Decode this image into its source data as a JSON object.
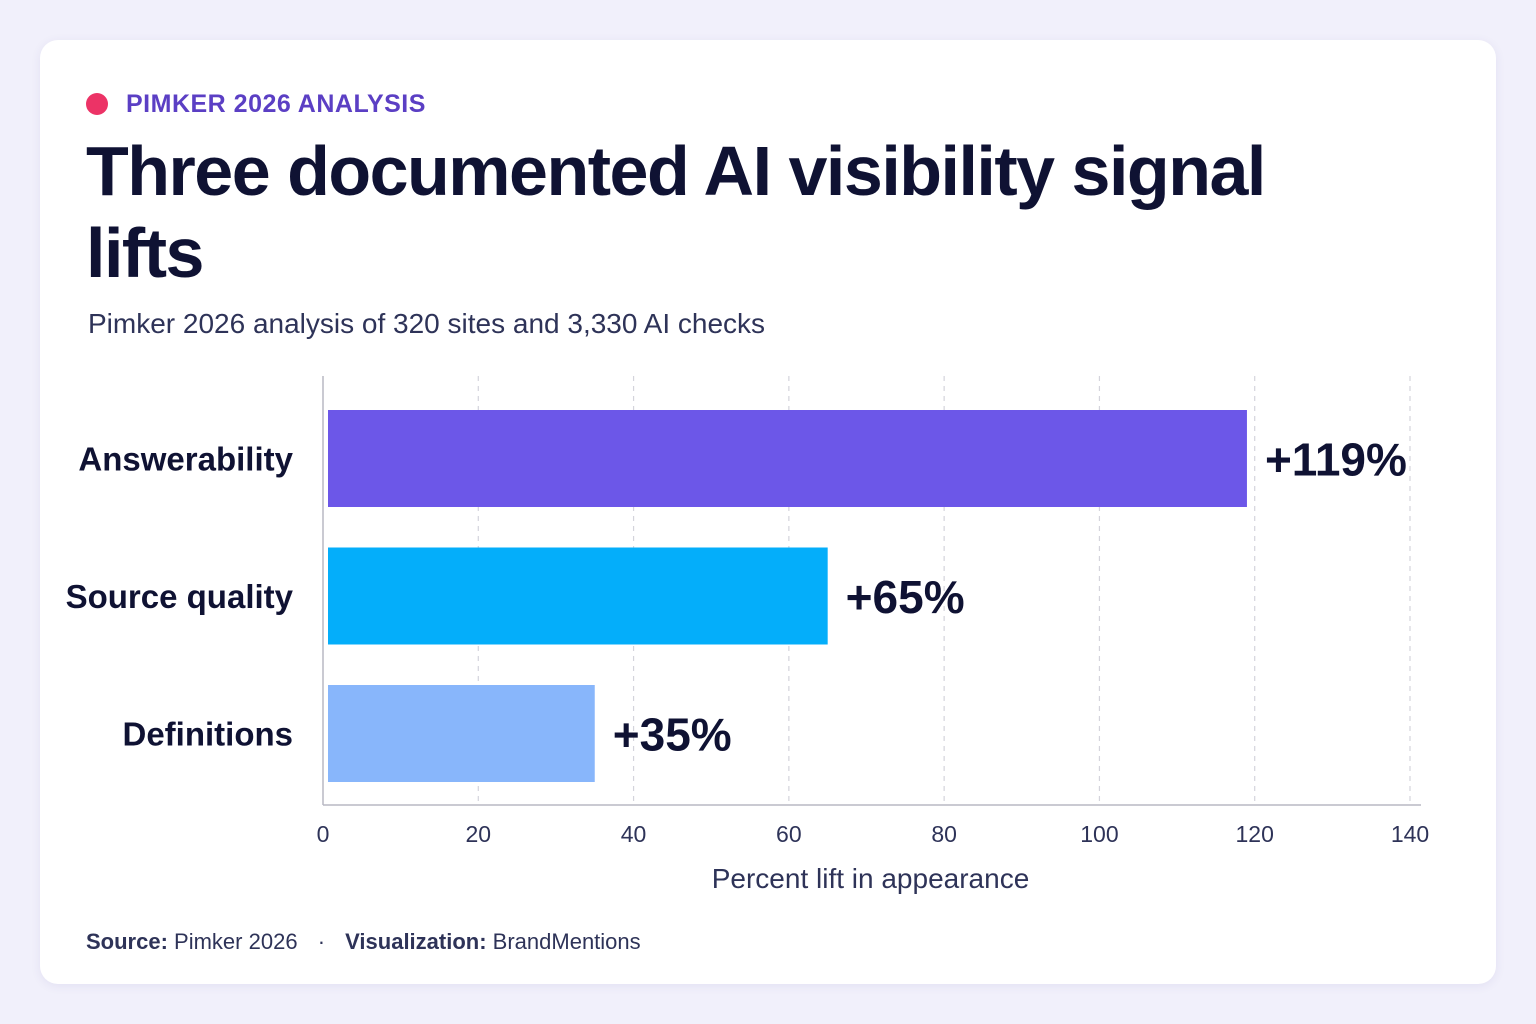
{
  "eyebrow": "PIMKER 2026 ANALYSIS",
  "title": "Three documented AI visibility signal lifts",
  "subtitle": "Pimker 2026 analysis of 320 sites and 3,330 AI checks",
  "footer": {
    "source_label": "Source:",
    "source_value": "Pimker 2026",
    "separator": "·",
    "viz_label": "Visualization:",
    "viz_value": "BrandMentions"
  },
  "colors": {
    "background": "#f1f0fb",
    "card": "#ffffff",
    "accent_dot": "#ec3366",
    "eyebrow": "#5b3fc4",
    "title": "#0f1233",
    "text": "#2e3358",
    "grid": "#d4d4dc",
    "axis": "#b8b8c4"
  },
  "chart_data": {
    "type": "bar",
    "orientation": "horizontal",
    "categories": [
      "Answerability",
      "Source quality",
      "Definitions"
    ],
    "values": [
      119,
      65,
      35
    ],
    "value_labels": [
      "+119%",
      "+65%",
      "+35%"
    ],
    "bar_colors": [
      "#6c57e8",
      "#04aefa",
      "#88b6fb"
    ],
    "xlabel": "Percent lift in appearance",
    "xlim": [
      0,
      140
    ],
    "xticks": [
      0,
      20,
      40,
      60,
      80,
      100,
      120,
      140
    ],
    "grid": "vertical dashed"
  }
}
